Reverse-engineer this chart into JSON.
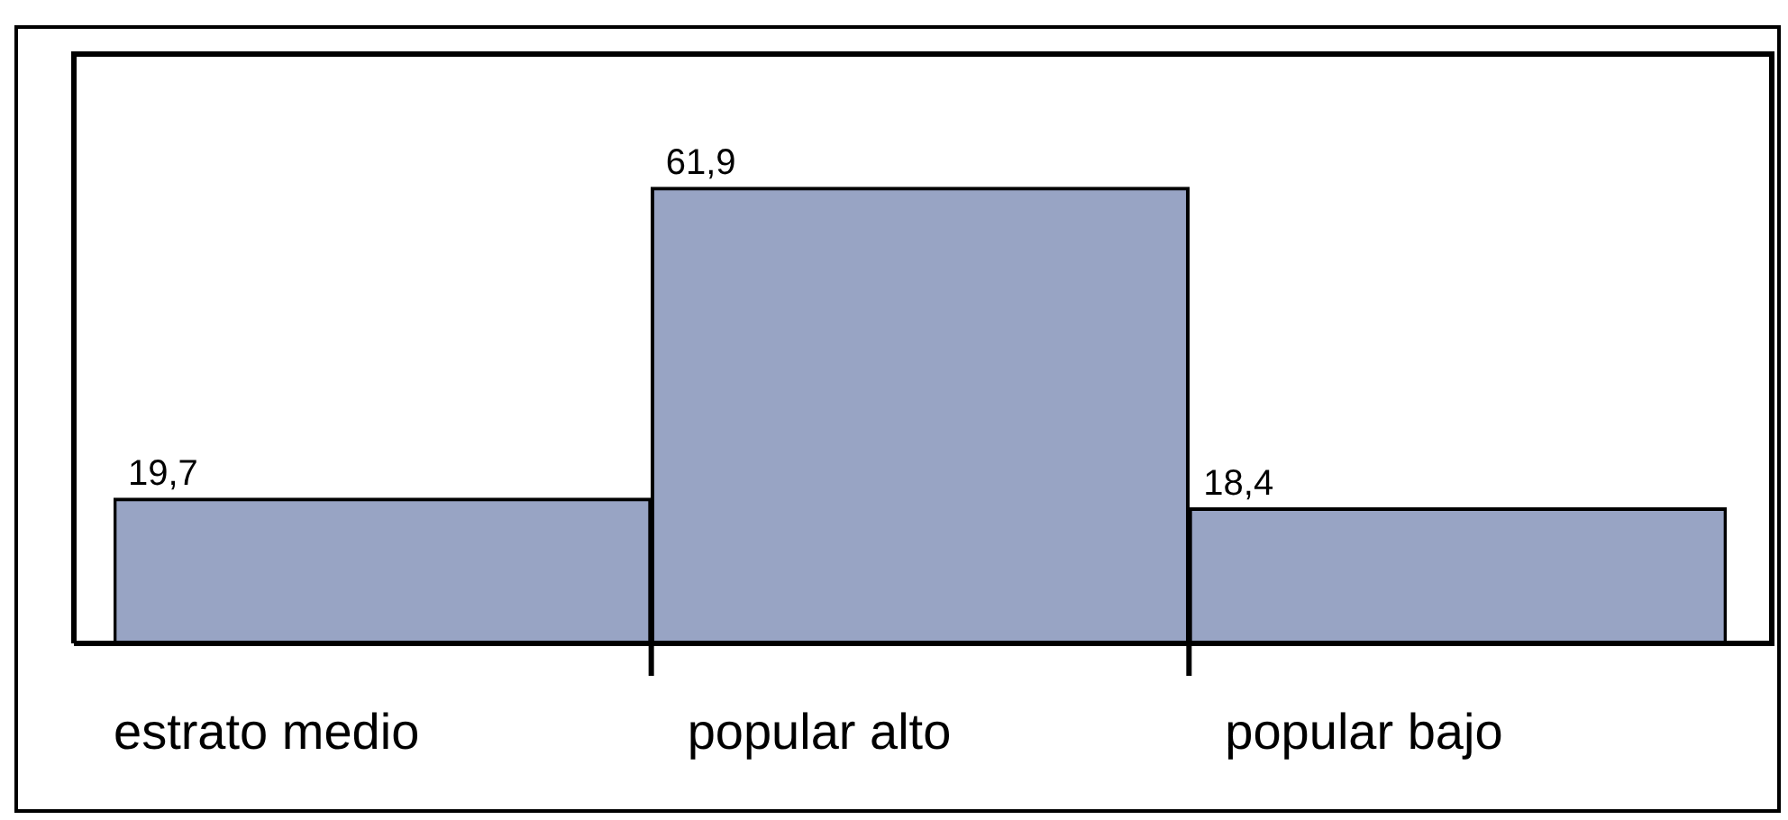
{
  "chart_data": {
    "type": "bar",
    "categories": [
      "estrato medio",
      "popular alto",
      "popular bajo"
    ],
    "values": [
      19.7,
      61.9,
      18.4
    ],
    "value_labels": [
      "19,7",
      "61,9",
      "18,4"
    ],
    "color": "#98a4c4",
    "grid": false,
    "legend": false
  }
}
